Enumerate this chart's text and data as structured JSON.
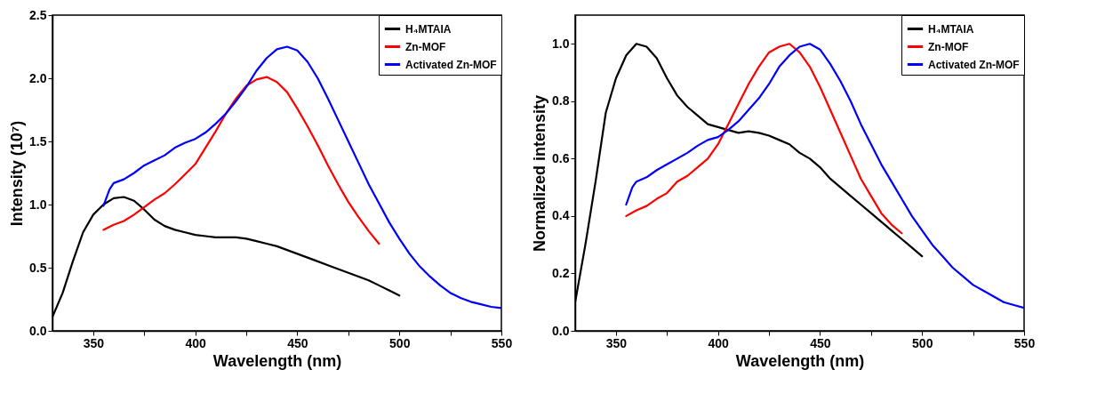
{
  "chart_data": [
    {
      "type": "line",
      "xlabel": "Wavelength (nm)",
      "ylabel": "Intensity (10⁷)",
      "xlim": [
        330,
        550
      ],
      "ylim": [
        0,
        2.5
      ],
      "xticks": [
        350,
        {
          "value": 375,
          "label": null
        },
        400,
        {
          "value": 425,
          "label": null
        },
        450,
        {
          "value": 475,
          "label": null
        },
        500,
        {
          "value": 525,
          "label": null
        },
        550
      ],
      "yticks": [
        {
          "value": 0,
          "label": "0.0"
        },
        {
          "value": 0.5,
          "label": "0.5"
        },
        {
          "value": 1,
          "label": "1.0"
        },
        {
          "value": 1.5,
          "label": "1.5"
        },
        {
          "value": 2,
          "label": "2.0"
        },
        {
          "value": 2.5,
          "label": "2.5"
        }
      ],
      "grid": false,
      "legend": "top right",
      "marker": "none",
      "line_style": "solid",
      "series": [
        {
          "name": "H₄MTAIA",
          "color": "#000000",
          "x": [
            330,
            335,
            340,
            345,
            350,
            355,
            360,
            365,
            370,
            375,
            380,
            385,
            390,
            395,
            400,
            405,
            410,
            415,
            420,
            425,
            430,
            435,
            440,
            445,
            450,
            455,
            460,
            465,
            470,
            475,
            480,
            485,
            490,
            495,
            500
          ],
          "values": [
            0.11,
            0.3,
            0.55,
            0.78,
            0.92,
            1.0,
            1.05,
            1.06,
            1.03,
            0.96,
            0.88,
            0.83,
            0.8,
            0.78,
            0.76,
            0.75,
            0.74,
            0.74,
            0.74,
            0.73,
            0.71,
            0.69,
            0.67,
            0.64,
            0.61,
            0.58,
            0.55,
            0.52,
            0.49,
            0.46,
            0.43,
            0.4,
            0.36,
            0.32,
            0.28
          ]
        },
        {
          "name": "Zn-MOF",
          "color": "#ff0000",
          "x": [
            355,
            360,
            365,
            370,
            375,
            380,
            385,
            390,
            395,
            400,
            405,
            410,
            415,
            420,
            425,
            430,
            435,
            440,
            445,
            450,
            455,
            460,
            465,
            470,
            475,
            480,
            485,
            490
          ],
          "values": [
            0.8,
            0.84,
            0.87,
            0.92,
            0.98,
            1.04,
            1.09,
            1.16,
            1.24,
            1.32,
            1.45,
            1.58,
            1.72,
            1.84,
            1.94,
            1.99,
            2.01,
            1.97,
            1.89,
            1.76,
            1.62,
            1.47,
            1.31,
            1.16,
            1.02,
            0.9,
            0.79,
            0.69
          ]
        },
        {
          "name": "Activated Zn-MOF",
          "color": "#0000ff",
          "x": [
            355,
            358,
            360,
            365,
            370,
            375,
            380,
            385,
            390,
            395,
            400,
            405,
            410,
            415,
            420,
            425,
            430,
            435,
            440,
            445,
            450,
            455,
            460,
            465,
            470,
            475,
            480,
            485,
            490,
            495,
            500,
            505,
            510,
            515,
            520,
            525,
            530,
            535,
            540,
            545,
            550
          ],
          "values": [
            0.99,
            1.12,
            1.17,
            1.2,
            1.25,
            1.31,
            1.35,
            1.39,
            1.45,
            1.49,
            1.52,
            1.57,
            1.64,
            1.72,
            1.82,
            1.93,
            2.06,
            2.16,
            2.23,
            2.25,
            2.22,
            2.13,
            2.0,
            1.84,
            1.67,
            1.5,
            1.33,
            1.16,
            1.01,
            0.86,
            0.73,
            0.61,
            0.51,
            0.43,
            0.36,
            0.3,
            0.26,
            0.23,
            0.21,
            0.19,
            0.18
          ]
        }
      ]
    },
    {
      "type": "line",
      "xlabel": "Wavelength (nm)",
      "ylabel": "Normalized intensity",
      "xlim": [
        330,
        550
      ],
      "ylim": [
        0,
        1.1
      ],
      "xticks": [
        350,
        {
          "value": 375,
          "label": null
        },
        400,
        {
          "value": 425,
          "label": null
        },
        450,
        {
          "value": 475,
          "label": null
        },
        500,
        {
          "value": 525,
          "label": null
        },
        550
      ],
      "yticks": [
        {
          "value": 0,
          "label": "0.0"
        },
        {
          "value": 0.2,
          "label": "0.2"
        },
        {
          "value": 0.4,
          "label": "0.4"
        },
        {
          "value": 0.6,
          "label": "0.6"
        },
        {
          "value": 0.8,
          "label": "0.8"
        },
        {
          "value": 1,
          "label": "1.0"
        }
      ],
      "grid": false,
      "legend": "top right",
      "marker": "none",
      "line_style": "solid",
      "series": [
        {
          "name": "H₄MTAIA",
          "color": "#000000",
          "x": [
            330,
            335,
            340,
            345,
            350,
            355,
            360,
            365,
            370,
            375,
            380,
            385,
            390,
            395,
            400,
            405,
            410,
            415,
            420,
            425,
            430,
            435,
            440,
            445,
            450,
            455,
            460,
            465,
            470,
            475,
            480,
            485,
            490,
            495,
            500
          ],
          "values": [
            0.1,
            0.3,
            0.52,
            0.76,
            0.88,
            0.96,
            1.0,
            0.99,
            0.95,
            0.88,
            0.82,
            0.78,
            0.75,
            0.72,
            0.71,
            0.7,
            0.69,
            0.695,
            0.69,
            0.68,
            0.665,
            0.65,
            0.62,
            0.6,
            0.57,
            0.53,
            0.5,
            0.47,
            0.44,
            0.41,
            0.38,
            0.35,
            0.32,
            0.29,
            0.26
          ]
        },
        {
          "name": "Zn-MOF",
          "color": "#ff0000",
          "x": [
            355,
            360,
            365,
            370,
            375,
            380,
            385,
            390,
            395,
            400,
            405,
            410,
            415,
            420,
            425,
            430,
            435,
            440,
            445,
            450,
            455,
            460,
            465,
            470,
            475,
            480,
            485,
            490
          ],
          "values": [
            0.4,
            0.42,
            0.435,
            0.46,
            0.48,
            0.52,
            0.54,
            0.57,
            0.6,
            0.65,
            0.72,
            0.79,
            0.86,
            0.92,
            0.97,
            0.99,
            1.0,
            0.97,
            0.92,
            0.85,
            0.77,
            0.69,
            0.61,
            0.53,
            0.47,
            0.41,
            0.37,
            0.34
          ]
        },
        {
          "name": "Activated Zn-MOF",
          "color": "#0000ff",
          "x": [
            355,
            358,
            360,
            365,
            370,
            375,
            380,
            385,
            390,
            395,
            400,
            405,
            410,
            415,
            420,
            425,
            430,
            435,
            440,
            445,
            450,
            455,
            460,
            465,
            470,
            475,
            480,
            485,
            490,
            495,
            500,
            505,
            510,
            515,
            520,
            525,
            530,
            535,
            540,
            545,
            550
          ],
          "values": [
            0.44,
            0.5,
            0.52,
            0.535,
            0.56,
            0.58,
            0.6,
            0.62,
            0.645,
            0.665,
            0.675,
            0.7,
            0.73,
            0.77,
            0.81,
            0.86,
            0.92,
            0.96,
            0.99,
            1.0,
            0.98,
            0.93,
            0.87,
            0.8,
            0.72,
            0.65,
            0.58,
            0.52,
            0.46,
            0.4,
            0.35,
            0.3,
            0.26,
            0.22,
            0.19,
            0.16,
            0.14,
            0.12,
            0.1,
            0.09,
            0.08
          ]
        }
      ]
    }
  ]
}
